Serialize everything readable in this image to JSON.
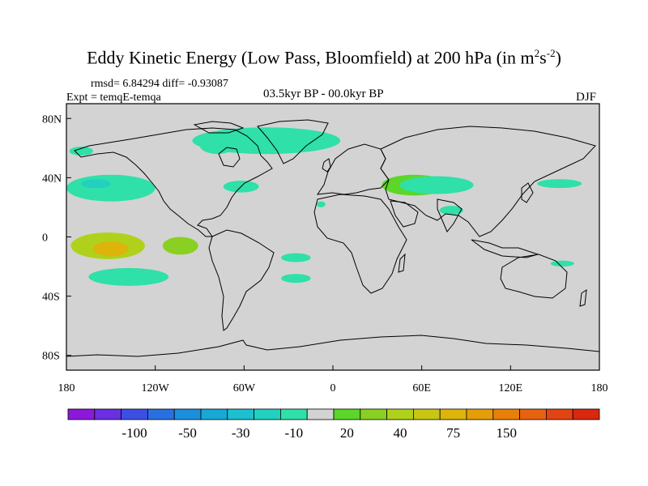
{
  "title": "Eddy Kinetic Energy (Low Pass, Bloomfield) at 200 hPa (in m",
  "title_sup1": "2",
  "title_mid": "s",
  "title_sup2": "-2",
  "title_end": ")",
  "stats": "rmsd= 6.84294 diff= -0.93087",
  "experiment": "Expt = temqE-temqa",
  "period": "03.5kyr BP - 00.0kyr BP",
  "season": "DJF",
  "chart_data": {
    "type": "heatmap",
    "projection": "cylindrical-equidistant",
    "background_color": "#d3d3d3",
    "coastline_color": "#000000",
    "x_ticks": [
      {
        "value": -180,
        "label": "180"
      },
      {
        "value": -120,
        "label": "120W"
      },
      {
        "value": -60,
        "label": "60W"
      },
      {
        "value": 0,
        "label": "0"
      },
      {
        "value": 60,
        "label": "60E"
      },
      {
        "value": 120,
        "label": "120E"
      },
      {
        "value": 180,
        "label": "180"
      }
    ],
    "y_ticks": [
      {
        "value": 80,
        "label": "80N"
      },
      {
        "value": 40,
        "label": "40N"
      },
      {
        "value": 0,
        "label": "0"
      },
      {
        "value": -40,
        "label": "40S"
      },
      {
        "value": -80,
        "label": "80S"
      }
    ],
    "xlim": [
      -180,
      180
    ],
    "ylim": [
      -90,
      90
    ],
    "colorbar": {
      "colors": [
        "#8c19d9",
        "#6a2fe0",
        "#3c4fe3",
        "#2a6fe0",
        "#1c8fdc",
        "#17a8d6",
        "#1cc0d0",
        "#22d0c0",
        "#2fe0a8",
        "#d3d3d3",
        "#5cd628",
        "#8ad022",
        "#b0d11c",
        "#c8c614",
        "#dcb40a",
        "#e69e08",
        "#e88008",
        "#e66210",
        "#e24414",
        "#d82810"
      ],
      "labels": [
        {
          "index": 2,
          "text": "-100"
        },
        {
          "index": 4,
          "text": "-50"
        },
        {
          "index": 6,
          "text": "-30"
        },
        {
          "index": 8,
          "text": "-10"
        },
        {
          "index": 10,
          "text": "20"
        },
        {
          "index": 12,
          "text": "40"
        },
        {
          "index": 14,
          "text": "75"
        },
        {
          "index": 16,
          "text": "150"
        }
      ]
    },
    "anomaly_regions": [
      {
        "name": "north-atlantic-negative",
        "lon": -45,
        "lat": 65,
        "rx": 50,
        "ry": 9,
        "value": -12
      },
      {
        "name": "hudson-bay-negative",
        "lon": -78,
        "lat": 62,
        "rx": 12,
        "ry": 6,
        "value": -12
      },
      {
        "name": "alaska-negative",
        "lon": -170,
        "lat": 58,
        "rx": 8,
        "ry": 3,
        "value": -12
      },
      {
        "name": "north-pacific-negative",
        "lon": -150,
        "lat": 33,
        "rx": 30,
        "ry": 9,
        "value": -15
      },
      {
        "name": "north-pacific-core",
        "lon": -160,
        "lat": 36,
        "rx": 10,
        "ry": 3,
        "value": -20
      },
      {
        "name": "west-atlantic-negative",
        "lon": -62,
        "lat": 34,
        "rx": 12,
        "ry": 4,
        "value": -12
      },
      {
        "name": "east-atlantic-negative",
        "lon": -8,
        "lat": 22,
        "rx": 3,
        "ry": 2,
        "value": -12
      },
      {
        "name": "north-africa-asia-positive",
        "lon": 55,
        "lat": 35,
        "rx": 22,
        "ry": 7,
        "value": 15
      },
      {
        "name": "middle-east-negative",
        "lon": 70,
        "lat": 35,
        "rx": 25,
        "ry": 6,
        "value": -12
      },
      {
        "name": "north-pacific-west-negative",
        "lon": 153,
        "lat": 36,
        "rx": 15,
        "ry": 3,
        "value": -12
      },
      {
        "name": "south-asia-negative",
        "lon": 80,
        "lat": 18,
        "rx": 8,
        "ry": 3,
        "value": -12
      },
      {
        "name": "tropical-pacific-positive",
        "lon": -152,
        "lat": -6,
        "rx": 25,
        "ry": 9,
        "value": 30
      },
      {
        "name": "tropical-pacific-core",
        "lon": -150,
        "lat": -8,
        "rx": 12,
        "ry": 5,
        "value": 50
      },
      {
        "name": "east-pacific-positive",
        "lon": -103,
        "lat": -6,
        "rx": 12,
        "ry": 6,
        "value": 20
      },
      {
        "name": "south-pacific-negative",
        "lon": -138,
        "lat": -27,
        "rx": 27,
        "ry": 6,
        "value": -15
      },
      {
        "name": "south-atlantic-negative-1",
        "lon": -25,
        "lat": -14,
        "rx": 10,
        "ry": 3,
        "value": -12
      },
      {
        "name": "south-atlantic-negative-2",
        "lon": -25,
        "lat": -28,
        "rx": 10,
        "ry": 3,
        "value": -12
      },
      {
        "name": "australia-negative",
        "lon": 155,
        "lat": -18,
        "rx": 8,
        "ry": 2,
        "value": -12
      }
    ]
  }
}
